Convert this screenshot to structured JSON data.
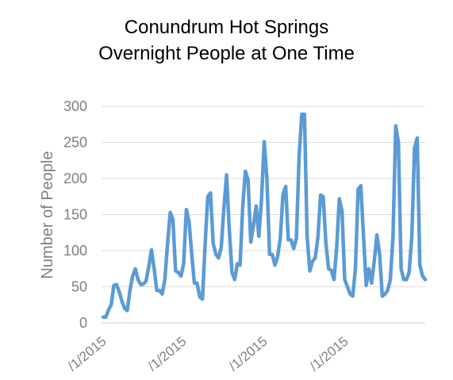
{
  "chart_data": {
    "type": "line",
    "title": "Conundrum Hot Springs",
    "subtitle": "Overnight People at One Time",
    "ylabel": "Number of People",
    "xlabel": "",
    "ylim": [
      0,
      300
    ],
    "yticks": [
      0,
      50,
      100,
      150,
      200,
      250,
      300
    ],
    "xtick_labels": [
      "/1/2015",
      "/1/2015",
      "/1/2015",
      "/1/2015"
    ],
    "grid": "horizontal",
    "legend": "none",
    "color": "#5b9bd5",
    "series": [
      {
        "values": [
          8,
          8,
          18,
          25,
          52,
          53,
          43,
          30,
          20,
          17,
          45,
          65,
          75,
          60,
          53,
          54,
          58,
          78,
          101,
          75,
          45,
          45,
          40,
          60,
          110,
          153,
          143,
          72,
          70,
          65,
          82,
          157,
          140,
          95,
          55,
          55,
          36,
          33,
          110,
          175,
          180,
          110,
          95,
          90,
          105,
          160,
          205,
          130,
          70,
          60,
          82,
          80,
          160,
          210,
          198,
          112,
          135,
          162,
          120,
          170,
          251,
          200,
          95,
          95,
          80,
          92,
          117,
          178,
          189,
          115,
          115,
          103,
          117,
          230,
          289,
          289,
          120,
          72,
          85,
          90,
          118,
          177,
          175,
          110,
          75,
          73,
          60,
          105,
          172,
          155,
          60,
          50,
          40,
          37,
          75,
          185,
          190,
          120,
          52,
          75,
          55,
          85,
          122,
          95,
          37,
          40,
          45,
          60,
          120,
          273,
          250,
          75,
          60,
          60,
          70,
          120,
          242,
          256,
          80,
          65,
          60
        ]
      }
    ]
  }
}
